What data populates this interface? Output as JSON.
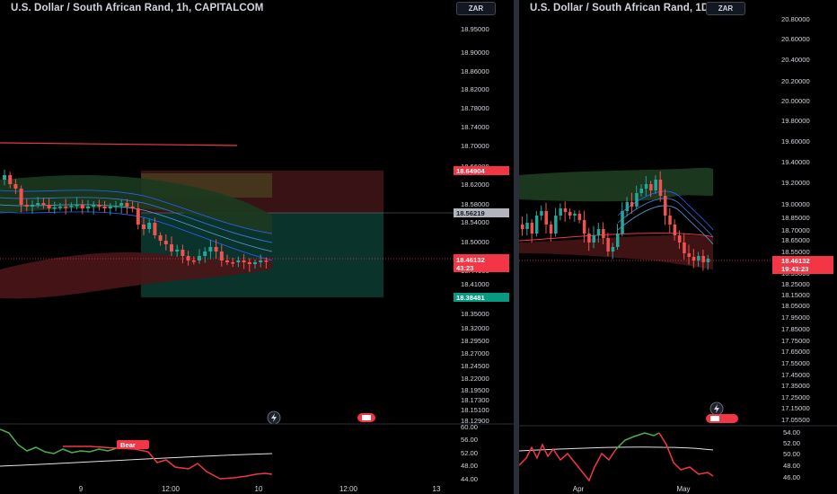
{
  "left": {
    "title": "U.S. Dollar / South African Rand, 1h, CAPITALCOM",
    "currency_button": "ZAR",
    "price_axis": [
      "18.95000",
      "18.90000",
      "18.86000",
      "18.82000",
      "18.78000",
      "18.74000",
      "18.70000",
      "18.66000",
      "18.62000",
      "18.58000",
      "18.54000",
      "18.50000",
      "18.47000",
      "18.44000",
      "18.41000",
      "18.35000",
      "18.32000",
      "18.29500",
      "18.27000",
      "18.24500",
      "18.22000",
      "18.19500",
      "18.17300",
      "18.15100",
      "18.12900"
    ],
    "price_tags": {
      "upper_red": "18.64904",
      "gray": "18.56219",
      "current_price": "18.46132",
      "countdown": "43:23",
      "green": "18.38481"
    },
    "indicator_axis": [
      "60.00",
      "56.00",
      "52.00",
      "48.00",
      "44.00"
    ],
    "bear_label": "Bear",
    "time_axis": [
      "9",
      "12:00",
      "10",
      "12:00",
      "13"
    ]
  },
  "right": {
    "title": "U.S. Dollar / South African Rand, 1D, C",
    "currency_button": "ZAR",
    "price_axis": [
      "20.80000",
      "20.60000",
      "20.40000",
      "20.20000",
      "20.00000",
      "19.80000",
      "19.60000",
      "19.40000",
      "19.20000",
      "19.00000",
      "18.85000",
      "18.70000",
      "18.65000",
      "18.55000",
      "18.45000",
      "18.35000",
      "18.25000",
      "18.15000",
      "18.05000",
      "17.95000",
      "17.85000",
      "17.75000",
      "17.65000",
      "17.55000",
      "17.45000",
      "17.35000",
      "17.25000",
      "17.15000",
      "17.05500"
    ],
    "price_tags": {
      "current_price": "18.46132",
      "countdown": "19:43:23"
    },
    "indicator_axis": [
      "54.00",
      "52.00",
      "50.00",
      "48.00",
      "46.00"
    ],
    "time_axis": [
      "Apr",
      "May"
    ]
  },
  "colors": {
    "background": "#000000",
    "up": "#26a69a",
    "down": "#ef5350",
    "bear": "#f23645",
    "rsi_up": "#4caf50",
    "rsi_down": "#f23645"
  },
  "icons": [
    "lightning-icon",
    "flag-icon"
  ]
}
